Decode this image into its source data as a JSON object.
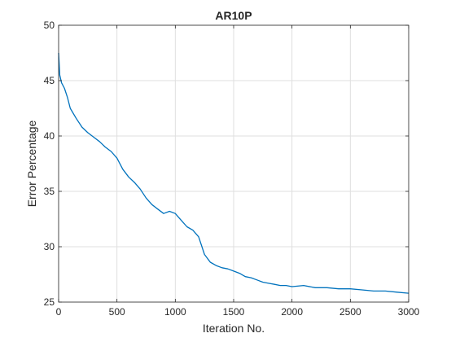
{
  "chart_data": {
    "type": "line",
    "title": "AR10P",
    "xlabel": "Iteration No.",
    "ylabel": "Error Percentage",
    "xlim": [
      0,
      3000
    ],
    "ylim": [
      25,
      50
    ],
    "xticks": [
      "0",
      "500",
      "1000",
      "1500",
      "2000",
      "2500",
      "3000"
    ],
    "yticks": [
      "25",
      "30",
      "35",
      "40",
      "45",
      "50"
    ],
    "grid": true,
    "series_color": "#0072BD",
    "series": [
      {
        "x": [
          0,
          10,
          25,
          50,
          75,
          100,
          150,
          200,
          250,
          300,
          350,
          400,
          450,
          500,
          550,
          600,
          650,
          700,
          750,
          800,
          850,
          900,
          950,
          1000,
          1050,
          1100,
          1150,
          1200,
          1250,
          1300,
          1350,
          1400,
          1450,
          1500,
          1550,
          1600,
          1650,
          1700,
          1750,
          1800,
          1850,
          1900,
          1950,
          2000,
          2100,
          2200,
          2300,
          2400,
          2500,
          2600,
          2700,
          2800,
          2900,
          3000
        ],
        "y": [
          47.5,
          45.5,
          44.8,
          44.3,
          43.5,
          42.5,
          41.6,
          40.8,
          40.3,
          39.9,
          39.5,
          39.0,
          38.6,
          38.0,
          37.0,
          36.3,
          35.8,
          35.2,
          34.4,
          33.8,
          33.4,
          33.0,
          33.2,
          33.0,
          32.4,
          31.8,
          31.5,
          30.9,
          29.3,
          28.6,
          28.3,
          28.1,
          28.0,
          27.8,
          27.6,
          27.3,
          27.2,
          27.0,
          26.8,
          26.7,
          26.6,
          26.5,
          26.5,
          26.4,
          26.5,
          26.3,
          26.3,
          26.2,
          26.2,
          26.1,
          26.0,
          26.0,
          25.9,
          25.8
        ]
      }
    ]
  }
}
